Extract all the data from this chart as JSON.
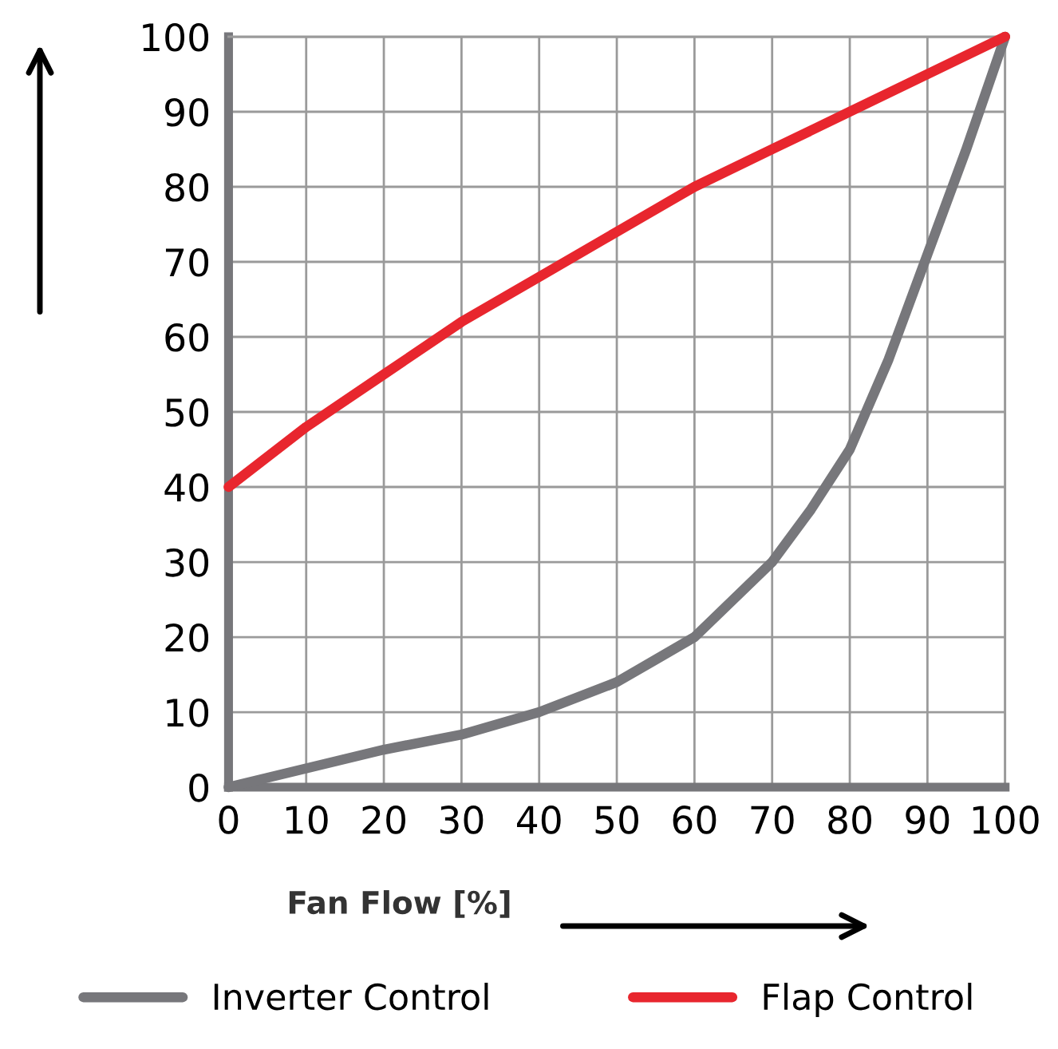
{
  "chart_data": {
    "type": "line",
    "xlabel": "Fan Flow [%]",
    "x": [
      0,
      10,
      20,
      30,
      40,
      50,
      60,
      70,
      80,
      90,
      100
    ],
    "series": [
      {
        "name": "Inverter Control",
        "color": "#77777b",
        "x": [
          0,
          10,
          20,
          30,
          40,
          50,
          55,
          60,
          70,
          75,
          80,
          85,
          90,
          95,
          100
        ],
        "values": [
          0,
          2.5,
          5,
          7,
          10,
          14,
          17,
          20,
          30,
          37,
          45,
          57,
          71,
          85,
          100
        ]
      },
      {
        "name": "Flap Control",
        "color": "#e8262e",
        "values": [
          40,
          48,
          55,
          62,
          68,
          74,
          80,
          85,
          90,
          95,
          100
        ]
      }
    ],
    "xlim": [
      0,
      100
    ],
    "ylim": [
      0,
      100
    ],
    "xticks": [
      0,
      10,
      20,
      30,
      40,
      50,
      60,
      70,
      80,
      90,
      100
    ],
    "yticks": [
      0,
      10,
      20,
      30,
      40,
      50,
      60,
      70,
      80,
      90,
      100
    ],
    "grid": true,
    "legend": "bottom",
    "marker": "none",
    "line_style": "solid"
  }
}
